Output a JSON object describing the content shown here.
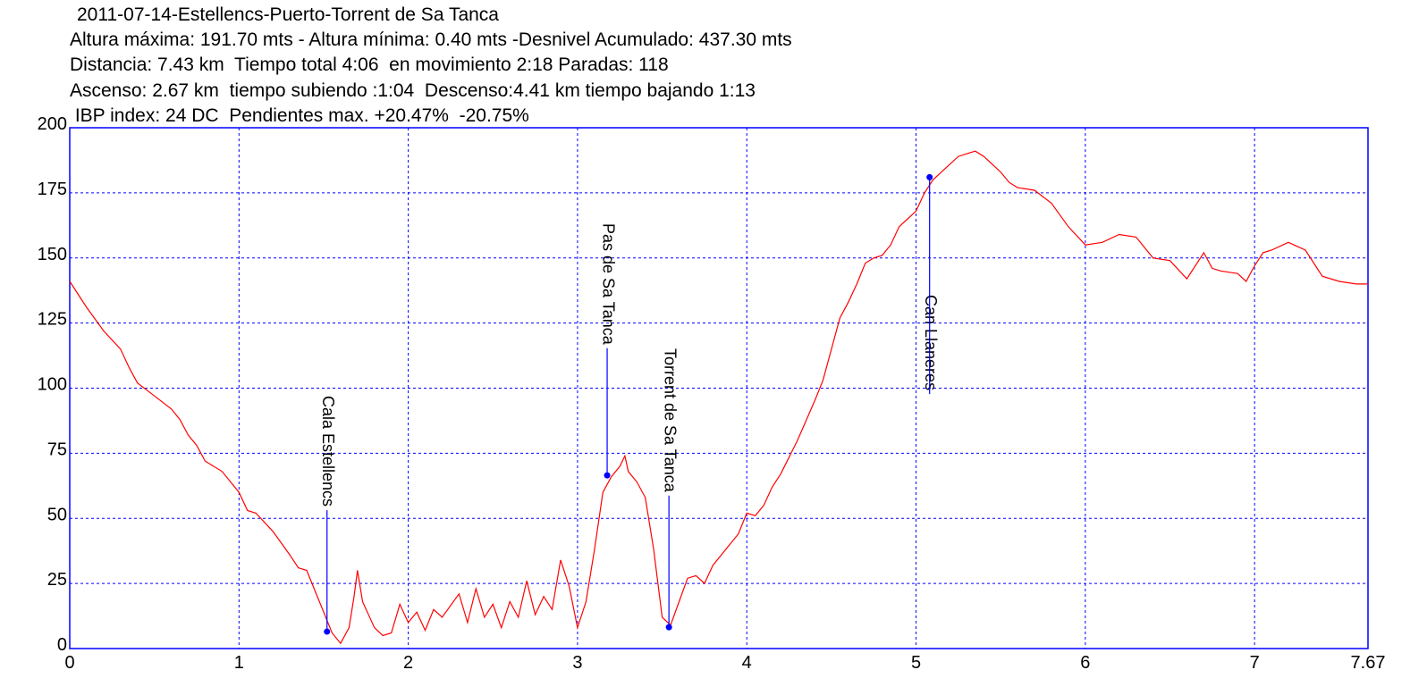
{
  "chart_data": {
    "type": "line",
    "title": "2011-07-14-Estellencs-Puerto-Torrent de Sa Tanca",
    "subtitle": [
      "Altura máxima: 191.70 mts - Altura mínima: 0.40 mts -Desnivel Acumulado: 437.30 mts",
      "Distancia: 7.43 km  Tiempo total 4:06  en movimiento 2:18 Paradas: 118",
      "Ascenso: 2.67 km  tiempo subiendo :1:04  Descenso:4.41 km tiempo bajando 1:13",
      " IBP index: 24 DC  Pendientes max. +20.47%  -20.75%"
    ],
    "xlim": [
      0,
      7.67
    ],
    "ylim": [
      0,
      200
    ],
    "xticks": [
      0,
      1,
      2,
      3,
      4,
      5,
      6,
      7,
      7.67
    ],
    "yticks": [
      0,
      25,
      50,
      75,
      100,
      125,
      150,
      175,
      200
    ],
    "grid": true,
    "frame_color": "#0000ff",
    "series": [
      {
        "color": "#ff0000",
        "x": [
          0,
          0.1,
          0.2,
          0.3,
          0.35,
          0.4,
          0.5,
          0.6,
          0.65,
          0.7,
          0.75,
          0.8,
          0.9,
          1.0,
          1.05,
          1.1,
          1.2,
          1.3,
          1.35,
          1.4,
          1.45,
          1.5,
          1.55,
          1.6,
          1.65,
          1.68,
          1.7,
          1.73,
          1.8,
          1.85,
          1.9,
          1.95,
          2.0,
          2.05,
          2.1,
          2.15,
          2.2,
          2.3,
          2.35,
          2.4,
          2.45,
          2.5,
          2.55,
          2.6,
          2.65,
          2.7,
          2.75,
          2.8,
          2.85,
          2.9,
          2.95,
          3.0,
          3.05,
          3.1,
          3.15,
          3.2,
          3.25,
          3.28,
          3.3,
          3.35,
          3.4,
          3.45,
          3.5,
          3.55,
          3.6,
          3.65,
          3.7,
          3.75,
          3.8,
          3.85,
          3.9,
          3.95,
          4.0,
          4.05,
          4.1,
          4.15,
          4.2,
          4.3,
          4.4,
          4.45,
          4.5,
          4.55,
          4.6,
          4.65,
          4.7,
          4.75,
          4.8,
          4.85,
          4.9,
          4.95,
          5.0,
          5.05,
          5.1,
          5.15,
          5.2,
          5.25,
          5.3,
          5.35,
          5.4,
          5.45,
          5.5,
          5.55,
          5.6,
          5.7,
          5.8,
          5.9,
          6.0,
          6.1,
          6.2,
          6.3,
          6.4,
          6.5,
          6.6,
          6.7,
          6.75,
          6.8,
          6.9,
          6.95,
          7.0,
          7.05,
          7.1,
          7.2,
          7.3,
          7.4,
          7.5,
          7.6,
          7.67
        ],
        "values": [
          141,
          131,
          122,
          115,
          108,
          102,
          97,
          92,
          88,
          82,
          78,
          72,
          68,
          60,
          53,
          52,
          45,
          36,
          31,
          30,
          22,
          14,
          6,
          2,
          8,
          20,
          30,
          18,
          8,
          5,
          6,
          17,
          10,
          14,
          7,
          15,
          12,
          21,
          10,
          23,
          12,
          17,
          8,
          18,
          12,
          26,
          13,
          20,
          15,
          34,
          24,
          8,
          18,
          38,
          60,
          66,
          70,
          74,
          68,
          64,
          58,
          38,
          12,
          9,
          18,
          27,
          28,
          25,
          32,
          36,
          40,
          44,
          52,
          51,
          55,
          62,
          67,
          80,
          95,
          103,
          115,
          127,
          133,
          140,
          148,
          150,
          151,
          155,
          162,
          165,
          168,
          175,
          180,
          183,
          186,
          189,
          190,
          191,
          189,
          186,
          183,
          179,
          177,
          176,
          171,
          162,
          155,
          156,
          159,
          158,
          150,
          149,
          142,
          152,
          146,
          145,
          144,
          141,
          147,
          152,
          153,
          156,
          153,
          143,
          141,
          140,
          140
        ]
      }
    ],
    "marker_color": "#0000ff",
    "annotations": [
      {
        "label": "Cala Estellencs",
        "x": 1.52,
        "y": 6.5
      },
      {
        "label": "Pas de Sa Tanca",
        "x": 3.175,
        "y": 66.5
      },
      {
        "label": "Torrent de Sa Tanca",
        "x": 3.54,
        "y": 8.2
      },
      {
        "label": "Can Llaneres",
        "x": 5.08,
        "y": 181
      }
    ]
  }
}
